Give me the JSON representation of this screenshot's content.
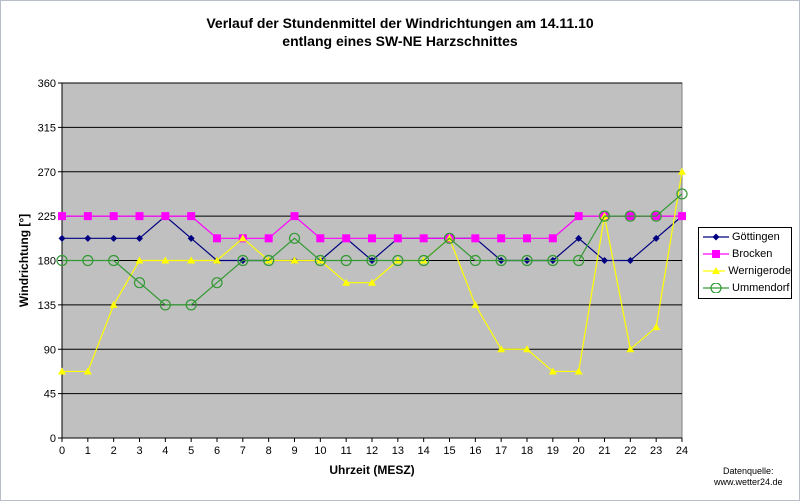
{
  "chart_data": {
    "type": "line",
    "title": [
      "Verlauf der Stundenmittel der Windrichtungen am 14.11.10",
      "entlang eines SW-NE Harzschnittes"
    ],
    "xlabel": "Uhrzeit (MESZ)",
    "ylabel": "Windrichtung [°]",
    "xlim": [
      0,
      24
    ],
    "ylim": [
      0,
      360
    ],
    "yticks": [
      0,
      45,
      90,
      135,
      180,
      225,
      270,
      315,
      360
    ],
    "x": [
      0,
      1,
      2,
      3,
      4,
      5,
      6,
      7,
      8,
      9,
      10,
      11,
      12,
      13,
      14,
      15,
      16,
      17,
      18,
      19,
      20,
      21,
      22,
      23,
      24
    ],
    "grid": "horizontal",
    "plot_background": "#c0c0c0",
    "legend_position": "right",
    "series": [
      {
        "name": "Göttingen",
        "color": "#000080",
        "marker": "diamond",
        "values": [
          202.5,
          202.5,
          202.5,
          202.5,
          225,
          202.5,
          180,
          180,
          180,
          180,
          180,
          202.5,
          180,
          202.5,
          202.5,
          202.5,
          202.5,
          180,
          180,
          180,
          202.5,
          180,
          180,
          202.5,
          225
        ]
      },
      {
        "name": "Brocken",
        "color": "#ff00ff",
        "marker": "square",
        "values": [
          225,
          225,
          225,
          225,
          225,
          225,
          202.5,
          202.5,
          202.5,
          225,
          202.5,
          202.5,
          202.5,
          202.5,
          202.5,
          202.5,
          202.5,
          202.5,
          202.5,
          202.5,
          225,
          225,
          225,
          225,
          225
        ]
      },
      {
        "name": "Wernigerode",
        "color": "#ffff00",
        "marker": "triangle",
        "values": [
          67.5,
          67.5,
          135,
          180,
          180,
          180,
          180,
          202.5,
          180,
          180,
          180,
          157.5,
          157.5,
          180,
          180,
          202.5,
          135,
          90,
          90,
          67.5,
          67.5,
          225,
          90,
          112.5,
          270
        ]
      },
      {
        "name": "Ummendorf",
        "color": "#339933",
        "marker": "circle",
        "values": [
          180,
          180,
          180,
          157.5,
          135,
          135,
          157.5,
          180,
          180,
          202.5,
          180,
          180,
          180,
          180,
          180,
          202.5,
          180,
          180,
          180,
          180,
          180,
          225,
          225,
          225,
          247.5
        ]
      }
    ]
  },
  "source": [
    "Datenquelle:",
    "www.wetter24.de"
  ]
}
